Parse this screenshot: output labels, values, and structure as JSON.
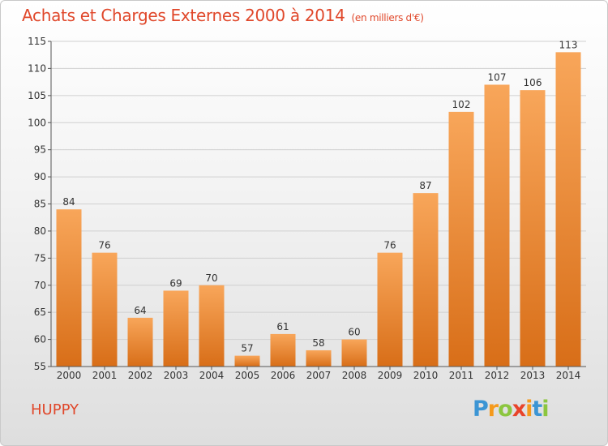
{
  "title": "Achats et Charges Externes 2000 à 2014",
  "subtitle": "(en milliers d'€)",
  "commune": "HUPPY",
  "logo": {
    "letters": [
      "P",
      "r",
      "o",
      "x",
      "i",
      "t",
      "i"
    ],
    "colors": [
      "#3c95d4",
      "#f59a1c",
      "#8cc63f",
      "#e8442a",
      "#f59a1c",
      "#3c95d4",
      "#8cc63f"
    ]
  },
  "colors": {
    "bar_light": "#f8a65a",
    "bar_dark": "#d86e18",
    "title": "#e0472a"
  },
  "chart_data": {
    "type": "bar",
    "title": "Achats et Charges Externes 2000 à 2014",
    "subtitle": "(en milliers d'€)",
    "xlabel": "",
    "ylabel": "",
    "categories": [
      "2000",
      "2001",
      "2002",
      "2003",
      "2004",
      "2005",
      "2006",
      "2007",
      "2008",
      "2009",
      "2010",
      "2011",
      "2012",
      "2013",
      "2014"
    ],
    "values": [
      84,
      76,
      64,
      69,
      70,
      57,
      61,
      58,
      60,
      76,
      87,
      102,
      107,
      106,
      113
    ],
    "ylim": [
      55,
      115
    ],
    "yticks": [
      55,
      60,
      65,
      70,
      75,
      80,
      85,
      90,
      95,
      100,
      105,
      110,
      115
    ],
    "grid": true
  }
}
